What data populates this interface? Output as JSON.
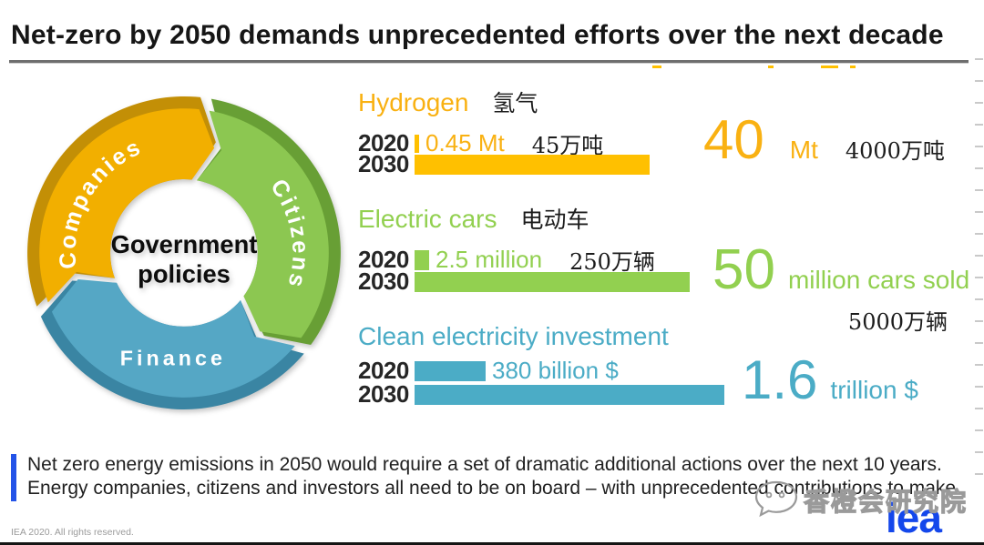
{
  "slide": {
    "title": "Net-zero by 2050 demands unprecedented efforts over the next decade",
    "footnote": "IEA 2020. All rights reserved.",
    "logo_text": "iea"
  },
  "colors": {
    "amber_text": "#F9B112",
    "amber_bar": "#FFC000",
    "green": "#92D050",
    "teal": "#4BACC6",
    "quote_accent_blue": "#2353E8",
    "iea_logo_blue": "#1447EB"
  },
  "diagram": {
    "center_line1": "Government",
    "center_line2": "policies",
    "segments": [
      {
        "label": "Companies",
        "color": "#F2AF00",
        "rim": "#C38F06"
      },
      {
        "label": "Citizens",
        "color": "#8CC751",
        "rim": "#689F35"
      },
      {
        "label": "Finance",
        "color": "#55A7C5",
        "rim": "#3A85A3"
      }
    ]
  },
  "panels": [
    {
      "title": "Hydrogen",
      "title_cn": "氢气",
      "y2020": "2020",
      "y2030": "2030",
      "value_label": "0.45 Mt",
      "value_cn": "45万吨",
      "big": "40",
      "big_unit": "Mt",
      "big_cn": "4000万吨"
    },
    {
      "title": "Electric cars",
      "title_cn": "电动车",
      "y2020": "2020",
      "y2030": "2030",
      "value_label": "2.5 million",
      "value_cn": "250万辆",
      "big": "50",
      "big_unit": "million cars sold",
      "big_cn": "5000万辆"
    },
    {
      "title": "Clean electricity investment",
      "title_cn": "",
      "y2020": "2020",
      "y2030": "2030",
      "value_label": "380 billion $",
      "value_cn": "",
      "big": "1.6",
      "big_unit": "trillion $",
      "big_cn": ""
    }
  ],
  "quote": {
    "line1": "Net zero energy emissions in 2050 would require a set of dramatic additional actions over the next 10 years.",
    "line2": "Energy companies, citizens and investors all need to be on board – with unprecedented contributions to make"
  },
  "watermark": {
    "text": "香橙会研究院",
    "icon": "wechat-icon"
  },
  "chart_data": [
    {
      "type": "bar",
      "title": "Hydrogen",
      "title_zh": "氢气",
      "categories": [
        "2020",
        "2030"
      ],
      "values": [
        0.45,
        40
      ],
      "unit": "Mt",
      "data_labels": [
        "0.45 Mt (45万吨)",
        "40 Mt (4000万吨)"
      ],
      "color": "#FFC000",
      "orientation": "horizontal"
    },
    {
      "type": "bar",
      "title": "Electric cars",
      "title_zh": "电动车",
      "categories": [
        "2020",
        "2030"
      ],
      "values": [
        2.5,
        50
      ],
      "unit": "million cars sold",
      "data_labels": [
        "2.5 million (250万辆)",
        "50 million cars sold (5000万辆)"
      ],
      "color": "#92D050",
      "orientation": "horizontal"
    },
    {
      "type": "bar",
      "title": "Clean electricity investment",
      "categories": [
        "2020",
        "2030"
      ],
      "values": [
        380,
        1600
      ],
      "unit": "billion $",
      "data_labels": [
        "380 billion $",
        "1.6 trillion $"
      ],
      "color": "#4BACC6",
      "orientation": "horizontal"
    }
  ]
}
